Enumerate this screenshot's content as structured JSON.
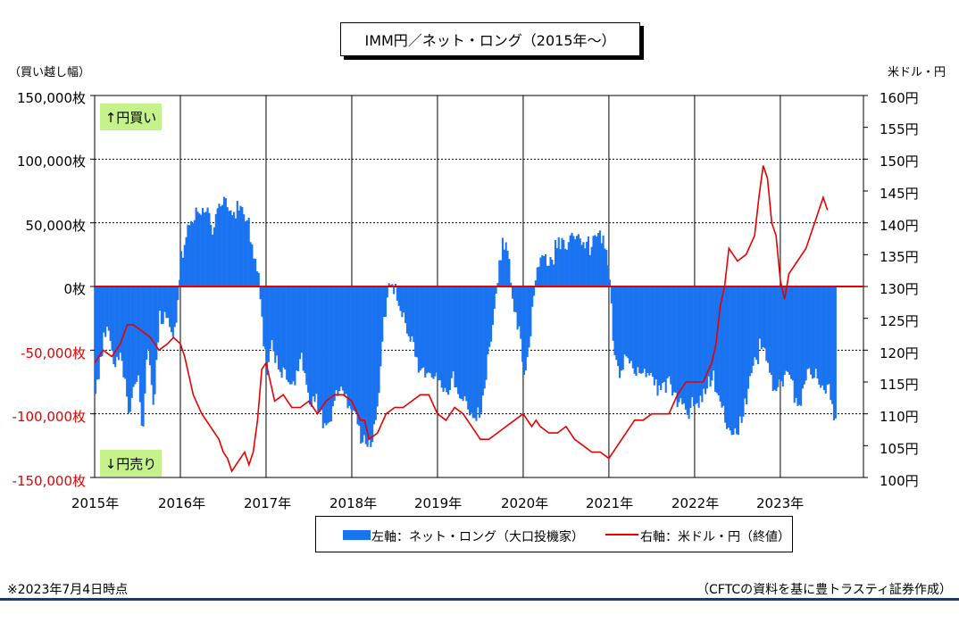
{
  "chart_data": {
    "type": "bar",
    "title": "IMM円／ネット・ロング（2015年～）",
    "left_axis_unit": "（買い越し幅）",
    "right_axis_unit": "米ドル・円",
    "left_ticks": [
      "150,000枚",
      "100,000枚",
      "50,000枚",
      "0枚",
      "-50,000枚",
      "-100,000枚",
      "-150,000枚"
    ],
    "right_ticks": [
      "160円",
      "155円",
      "150円",
      "145円",
      "140円",
      "135円",
      "130円",
      "125円",
      "120円",
      "115円",
      "110円",
      "105円",
      "100円"
    ],
    "x_ticks": [
      "2015年",
      "2016年",
      "2017年",
      "2018年",
      "2019年",
      "2020年",
      "2021年",
      "2022年",
      "2023年"
    ],
    "ylim_left": [
      -150000,
      150000
    ],
    "ylim_right": [
      100,
      160
    ],
    "xlim": [
      2015.0,
      2023.97
    ],
    "grid": true,
    "legend_placement": "bottom",
    "colors": {
      "bar": "#1a73f0",
      "line": "#e60000",
      "zero": "#e60000",
      "marker": "#c6f28c"
    },
    "annotations": {
      "buy": "↑円買い",
      "sell": "↓円売り"
    },
    "series": [
      {
        "name": "左軸：ネット・ロング（大口投機家）",
        "type": "bar",
        "axis": "left",
        "x": [
          2015.0,
          2015.05,
          2015.1,
          2015.15,
          2015.2,
          2015.3,
          2015.4,
          2015.45,
          2015.5,
          2015.55,
          2015.6,
          2015.68,
          2015.75,
          2015.82,
          2015.9,
          2015.95,
          2016.0,
          2016.05,
          2016.1,
          2016.2,
          2016.3,
          2016.35,
          2016.4,
          2016.5,
          2016.6,
          2016.7,
          2016.75,
          2016.8,
          2016.9,
          2016.95,
          2017.0,
          2017.05,
          2017.1,
          2017.2,
          2017.3,
          2017.4,
          2017.5,
          2017.6,
          2017.7,
          2017.8,
          2017.9,
          2018.0,
          2018.1,
          2018.2,
          2018.25,
          2018.3,
          2018.4,
          2018.5,
          2018.6,
          2018.7,
          2018.8,
          2018.9,
          2019.0,
          2019.1,
          2019.2,
          2019.3,
          2019.4,
          2019.5,
          2019.6,
          2019.65,
          2019.7,
          2019.75,
          2019.8,
          2019.9,
          2019.95,
          2020.0,
          2020.05,
          2020.15,
          2020.2,
          2020.3,
          2020.4,
          2020.5,
          2020.6,
          2020.7,
          2020.8,
          2020.9,
          2020.95,
          2021.0,
          2021.05,
          2021.1,
          2021.2,
          2021.3,
          2021.4,
          2021.5,
          2021.6,
          2021.7,
          2021.8,
          2021.9,
          2022.0,
          2022.1,
          2022.2,
          2022.3,
          2022.4,
          2022.5,
          2022.6,
          2022.7,
          2022.8,
          2022.9,
          2023.0,
          2023.1,
          2023.2,
          2023.3,
          2023.4,
          2023.5
        ],
        "values": [
          -90000,
          -70000,
          -45000,
          -40000,
          -60000,
          -50000,
          -95000,
          -70000,
          -60000,
          -115000,
          -40000,
          -100000,
          -30000,
          -30000,
          -50000,
          -25000,
          20000,
          45000,
          55000,
          65000,
          70000,
          55000,
          45000,
          65000,
          50000,
          60000,
          50000,
          40000,
          15000,
          -30000,
          -60000,
          -40000,
          -50000,
          -75000,
          -85000,
          -60000,
          -100000,
          -90000,
          -110000,
          -80000,
          -75000,
          -100000,
          -125000,
          -130000,
          -120000,
          -95000,
          3000,
          3000,
          -20000,
          -40000,
          -70000,
          -80000,
          -75000,
          -90000,
          -70000,
          -85000,
          -100000,
          -90000,
          -50000,
          -30000,
          5000,
          30000,
          25000,
          -30000,
          -40000,
          -60000,
          -50000,
          25000,
          30000,
          25000,
          30000,
          25000,
          35000,
          25000,
          40000,
          45000,
          40000,
          15000,
          -50000,
          -60000,
          -65000,
          -70000,
          -75000,
          -80000,
          -75000,
          -70000,
          -85000,
          -90000,
          -100000,
          -90000,
          -75000,
          -100000,
          -110000,
          -105000,
          -80000,
          -50000,
          -55000,
          -85000,
          -80000,
          -75000,
          -90000,
          -65000,
          -60000,
          -80000
        ],
        "end_values": [
          2023.55,
          -85000,
          2023.6,
          -105000,
          2023.65,
          -118000
        ]
      },
      {
        "name": "右軸：米ドル・円（終値）",
        "type": "line",
        "axis": "right",
        "x": [
          2015.0,
          2015.1,
          2015.2,
          2015.3,
          2015.38,
          2015.45,
          2015.55,
          2015.65,
          2015.75,
          2015.85,
          2015.92,
          2016.0,
          2016.05,
          2016.1,
          2016.15,
          2016.25,
          2016.35,
          2016.45,
          2016.5,
          2016.55,
          2016.6,
          2016.65,
          2016.7,
          2016.75,
          2016.8,
          2016.85,
          2016.9,
          2016.95,
          2017.0,
          2017.1,
          2017.2,
          2017.3,
          2017.4,
          2017.5,
          2017.6,
          2017.7,
          2017.8,
          2017.9,
          2018.0,
          2018.1,
          2018.15,
          2018.2,
          2018.3,
          2018.4,
          2018.5,
          2018.6,
          2018.7,
          2018.8,
          2018.9,
          2019.0,
          2019.1,
          2019.2,
          2019.3,
          2019.4,
          2019.5,
          2019.6,
          2019.7,
          2019.8,
          2019.9,
          2020.0,
          2020.1,
          2020.15,
          2020.2,
          2020.3,
          2020.4,
          2020.5,
          2020.6,
          2020.7,
          2020.8,
          2020.9,
          2021.0,
          2021.1,
          2021.2,
          2021.3,
          2021.4,
          2021.5,
          2021.6,
          2021.7,
          2021.8,
          2021.9,
          2022.0,
          2022.1,
          2022.2,
          2022.25,
          2022.3,
          2022.35,
          2022.4,
          2022.5,
          2022.6,
          2022.7,
          2022.75,
          2022.8,
          2022.85,
          2022.9,
          2022.95,
          2023.0,
          2023.05,
          2023.1,
          2023.2,
          2023.3,
          2023.4,
          2023.5,
          2023.55
        ],
        "values": [
          118,
          120,
          119,
          121,
          124,
          124,
          123,
          122,
          120,
          121,
          122,
          121,
          119,
          116,
          113,
          110,
          108,
          106,
          104,
          103,
          101,
          102,
          103,
          104,
          102,
          104,
          109,
          117,
          118,
          112,
          113,
          111,
          111,
          112,
          110,
          112,
          113,
          113,
          112,
          109,
          109,
          106,
          107,
          110,
          111,
          111,
          112,
          113,
          113,
          110,
          109,
          111,
          110,
          108,
          106,
          106,
          107,
          108,
          109,
          110,
          108,
          109,
          108,
          107,
          107,
          108,
          106,
          105,
          104,
          104,
          103,
          105,
          107,
          109,
          109,
          110,
          110,
          110,
          113,
          115,
          115,
          115,
          118,
          121,
          127,
          130,
          136,
          134,
          135,
          138,
          144,
          149,
          147,
          140,
          138,
          131,
          128,
          132,
          134,
          136,
          140,
          144,
          142
        ]
      }
    ]
  },
  "legend": {
    "bar_label": "左軸：ネット・ロング（大口投機家）",
    "line_label": "右軸：米ドル・円（終値）"
  },
  "footnote": "※2023年7月4日時点",
  "source": "（CFTCの資料を基に豊トラスティ証券作成）"
}
